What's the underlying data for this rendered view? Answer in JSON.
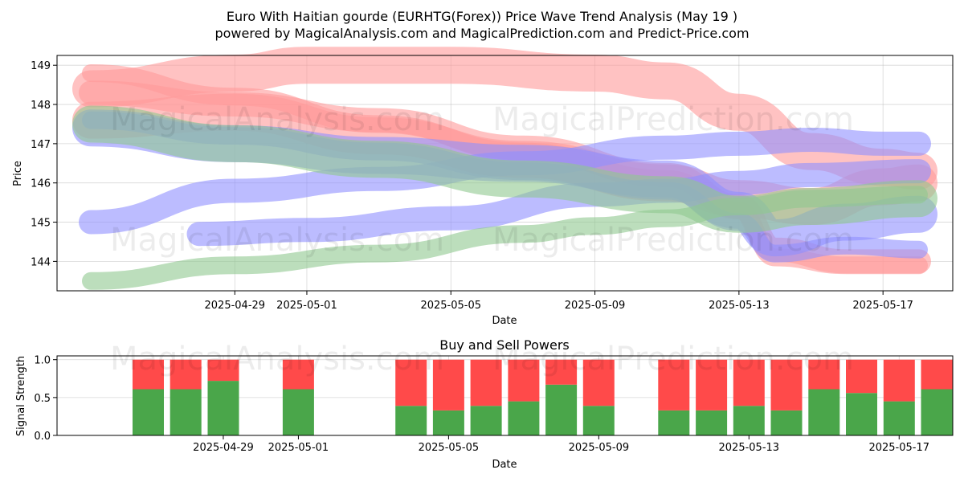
{
  "title_line1": "Euro With Haitian gourde (EURHTG(Forex)) Price Wave Trend Analysis (May 19 )",
  "title_line2": "powered by MagicalAnalysis.com and MagicalPrediction.com and Predict-Price.com",
  "watermarks": [
    "MagicalAnalysis.com",
    "MagicalPrediction.com"
  ],
  "colors": {
    "green": "#4aa64a",
    "red": "#ff4a4a",
    "wave_red": "#ff9a9a",
    "wave_blue": "#8f8fff",
    "wave_green": "#90c890"
  },
  "chart_data": [
    {
      "type": "line",
      "subtype": "price-wave-bands",
      "title": "",
      "xlabel": "Date",
      "ylabel": "Price",
      "x_range": [
        "2025-04-25",
        "2025-05-18"
      ],
      "ylim": [
        143.25,
        149.25
      ],
      "x_ticks": [
        "2025-04-29",
        "2025-05-01",
        "2025-05-05",
        "2025-05-09",
        "2025-05-13",
        "2025-05-17"
      ],
      "y_ticks": [
        144,
        145,
        146,
        147,
        148,
        149
      ],
      "grid": true,
      "series": [
        {
          "color": "red",
          "points": [
            [
              "2025-04-25",
              148.4
            ],
            [
              "2025-04-29",
              148.8
            ],
            [
              "2025-05-01",
              149.0
            ],
            [
              "2025-05-05",
              149.0
            ],
            [
              "2025-05-09",
              148.8
            ],
            [
              "2025-05-11",
              148.6
            ],
            [
              "2025-05-13",
              147.8
            ],
            [
              "2025-05-15",
              146.8
            ],
            [
              "2025-05-17",
              146.4
            ],
            [
              "2025-05-18",
              146.3
            ]
          ]
        },
        {
          "color": "red",
          "points": [
            [
              "2025-04-25",
              148.3
            ],
            [
              "2025-04-29",
              148.0
            ],
            [
              "2025-05-03",
              147.6
            ],
            [
              "2025-05-07",
              146.9
            ],
            [
              "2025-05-11",
              146.2
            ],
            [
              "2025-05-13",
              145.4
            ],
            [
              "2025-05-14",
              144.3
            ],
            [
              "2025-05-16",
              144.0
            ],
            [
              "2025-05-18",
              144.0
            ]
          ]
        },
        {
          "color": "red",
          "points": [
            [
              "2025-04-25",
              148.8
            ],
            [
              "2025-04-29",
              148.2
            ],
            [
              "2025-05-03",
              147.5
            ],
            [
              "2025-05-07",
              146.8
            ],
            [
              "2025-05-11",
              146.1
            ],
            [
              "2025-05-13",
              145.3
            ],
            [
              "2025-05-14",
              144.1
            ],
            [
              "2025-05-16",
              143.9
            ],
            [
              "2025-05-18",
              143.9
            ]
          ]
        },
        {
          "color": "red",
          "points": [
            [
              "2025-04-25",
              147.6
            ],
            [
              "2025-04-29",
              147.8
            ],
            [
              "2025-05-03",
              147.2
            ],
            [
              "2025-05-07",
              146.6
            ],
            [
              "2025-05-11",
              146.0
            ],
            [
              "2025-05-13",
              145.6
            ],
            [
              "2025-05-15",
              145.4
            ],
            [
              "2025-05-17",
              145.9
            ],
            [
              "2025-05-18",
              146.0
            ]
          ]
        },
        {
          "color": "blue",
          "points": [
            [
              "2025-04-25",
              145.0
            ],
            [
              "2025-04-29",
              145.8
            ],
            [
              "2025-05-03",
              146.1
            ],
            [
              "2025-05-07",
              146.5
            ],
            [
              "2025-05-11",
              146.9
            ],
            [
              "2025-05-13",
              147.0
            ],
            [
              "2025-05-15",
              147.1
            ],
            [
              "2025-05-17",
              147.0
            ],
            [
              "2025-05-18",
              147.0
            ]
          ]
        },
        {
          "color": "blue",
          "points": [
            [
              "2025-04-25",
              147.6
            ],
            [
              "2025-04-29",
              147.2
            ],
            [
              "2025-05-03",
              146.8
            ],
            [
              "2025-05-07",
              146.3
            ],
            [
              "2025-05-11",
              145.8
            ],
            [
              "2025-05-13",
              145.0
            ],
            [
              "2025-05-14",
              144.2
            ],
            [
              "2025-05-16",
              144.4
            ],
            [
              "2025-05-18",
              144.3
            ]
          ]
        },
        {
          "color": "blue",
          "points": [
            [
              "2025-04-25",
              147.4
            ],
            [
              "2025-04-29",
              147.0
            ],
            [
              "2025-05-03",
              146.7
            ],
            [
              "2025-05-07",
              146.5
            ],
            [
              "2025-05-11",
              146.1
            ],
            [
              "2025-05-13",
              145.3
            ],
            [
              "2025-05-14",
              144.6
            ],
            [
              "2025-05-16",
              145.0
            ],
            [
              "2025-05-18",
              145.2
            ]
          ]
        },
        {
          "color": "blue",
          "points": [
            [
              "2025-04-28",
              144.7
            ],
            [
              "2025-05-01",
              144.8
            ],
            [
              "2025-05-05",
              145.1
            ],
            [
              "2025-05-09",
              145.7
            ],
            [
              "2025-05-11",
              145.8
            ],
            [
              "2025-05-13",
              146.0
            ],
            [
              "2025-05-15",
              146.2
            ],
            [
              "2025-05-18",
              146.3
            ]
          ]
        },
        {
          "color": "green",
          "points": [
            [
              "2025-04-25",
              143.5
            ],
            [
              "2025-04-29",
              143.9
            ],
            [
              "2025-05-03",
              144.2
            ],
            [
              "2025-05-07",
              144.7
            ],
            [
              "2025-05-09",
              144.9
            ],
            [
              "2025-05-11",
              145.1
            ],
            [
              "2025-05-13",
              145.4
            ],
            [
              "2025-05-15",
              145.6
            ],
            [
              "2025-05-18",
              145.7
            ]
          ]
        },
        {
          "color": "green",
          "points": [
            [
              "2025-04-25",
              147.5
            ],
            [
              "2025-04-29",
              147.0
            ],
            [
              "2025-05-03",
              146.6
            ],
            [
              "2025-05-07",
              146.1
            ],
            [
              "2025-05-11",
              145.7
            ],
            [
              "2025-05-13",
              145.2
            ],
            [
              "2025-05-15",
              145.4
            ],
            [
              "2025-05-18",
              145.6
            ]
          ]
        }
      ]
    },
    {
      "type": "bar",
      "subtype": "stacked",
      "title": "Buy and Sell Powers",
      "xlabel": "Date",
      "ylabel": "Signal Strength",
      "x_range": [
        "2025-04-25",
        "2025-05-18"
      ],
      "ylim": [
        0,
        1.05
      ],
      "x_ticks": [
        "2025-04-29",
        "2025-05-01",
        "2025-05-05",
        "2025-05-09",
        "2025-05-13",
        "2025-05-17"
      ],
      "y_ticks": [
        "0.0",
        "0.5",
        "1.0"
      ],
      "grid": true,
      "dates": [
        "2025-04-27",
        "2025-04-28",
        "2025-04-29",
        "2025-05-01",
        "2025-05-04",
        "2025-05-05",
        "2025-05-06",
        "2025-05-07",
        "2025-05-08",
        "2025-05-09",
        "2025-05-11",
        "2025-05-12",
        "2025-05-13",
        "2025-05-14",
        "2025-05-15",
        "2025-05-16",
        "2025-05-17",
        "2025-05-18"
      ],
      "series": [
        {
          "color": "green",
          "values": [
            0.61,
            0.61,
            0.72,
            0.61,
            0.39,
            0.33,
            0.39,
            0.45,
            0.67,
            0.39,
            0.33,
            0.33,
            0.39,
            0.33,
            0.61,
            0.56,
            0.45,
            0.61
          ]
        },
        {
          "color": "red",
          "values": [
            0.39,
            0.39,
            0.28,
            0.39,
            0.61,
            0.67,
            0.61,
            0.55,
            0.33,
            0.61,
            0.67,
            0.67,
            0.61,
            0.67,
            0.39,
            0.44,
            0.55,
            0.39
          ]
        }
      ]
    }
  ]
}
